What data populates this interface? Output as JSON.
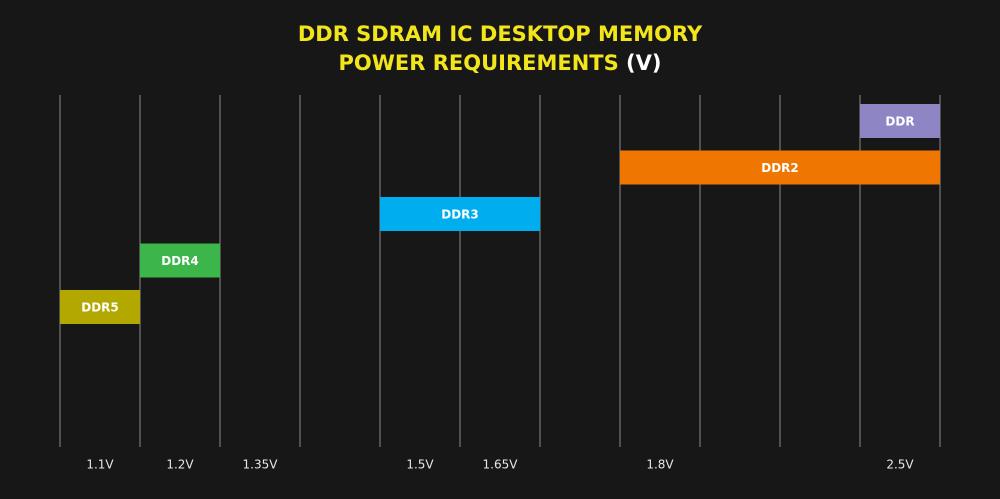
{
  "chart_data": {
    "type": "range-bar",
    "title": [
      "DDR SDRAM IC DESKTOP MEMORY",
      "POWER REQUIREMENTS"
    ],
    "title_unit": "(V)",
    "categories": [
      "1.1V",
      "1.2V",
      "1.35V",
      null,
      "1.5V",
      "1.65V",
      null,
      "1.8V",
      null,
      null,
      "2.5V"
    ],
    "grid": true,
    "series": [
      {
        "name": "DDR5",
        "color": "#b3a800",
        "range": [
          "1.1V",
          "1.1V"
        ]
      },
      {
        "name": "DDR4",
        "color": "#3cb54a",
        "range": [
          "1.2V",
          "1.2V"
        ]
      },
      {
        "name": "DDR3",
        "color": "#00aeef",
        "range": [
          "1.5V",
          "1.65V"
        ]
      },
      {
        "name": "DDR2",
        "color": "#ef7600",
        "range": [
          "1.8V",
          "2.5V"
        ]
      },
      {
        "name": "DDR",
        "color": "#8e86c4",
        "range": [
          "2.5V",
          "2.5V"
        ]
      }
    ]
  }
}
